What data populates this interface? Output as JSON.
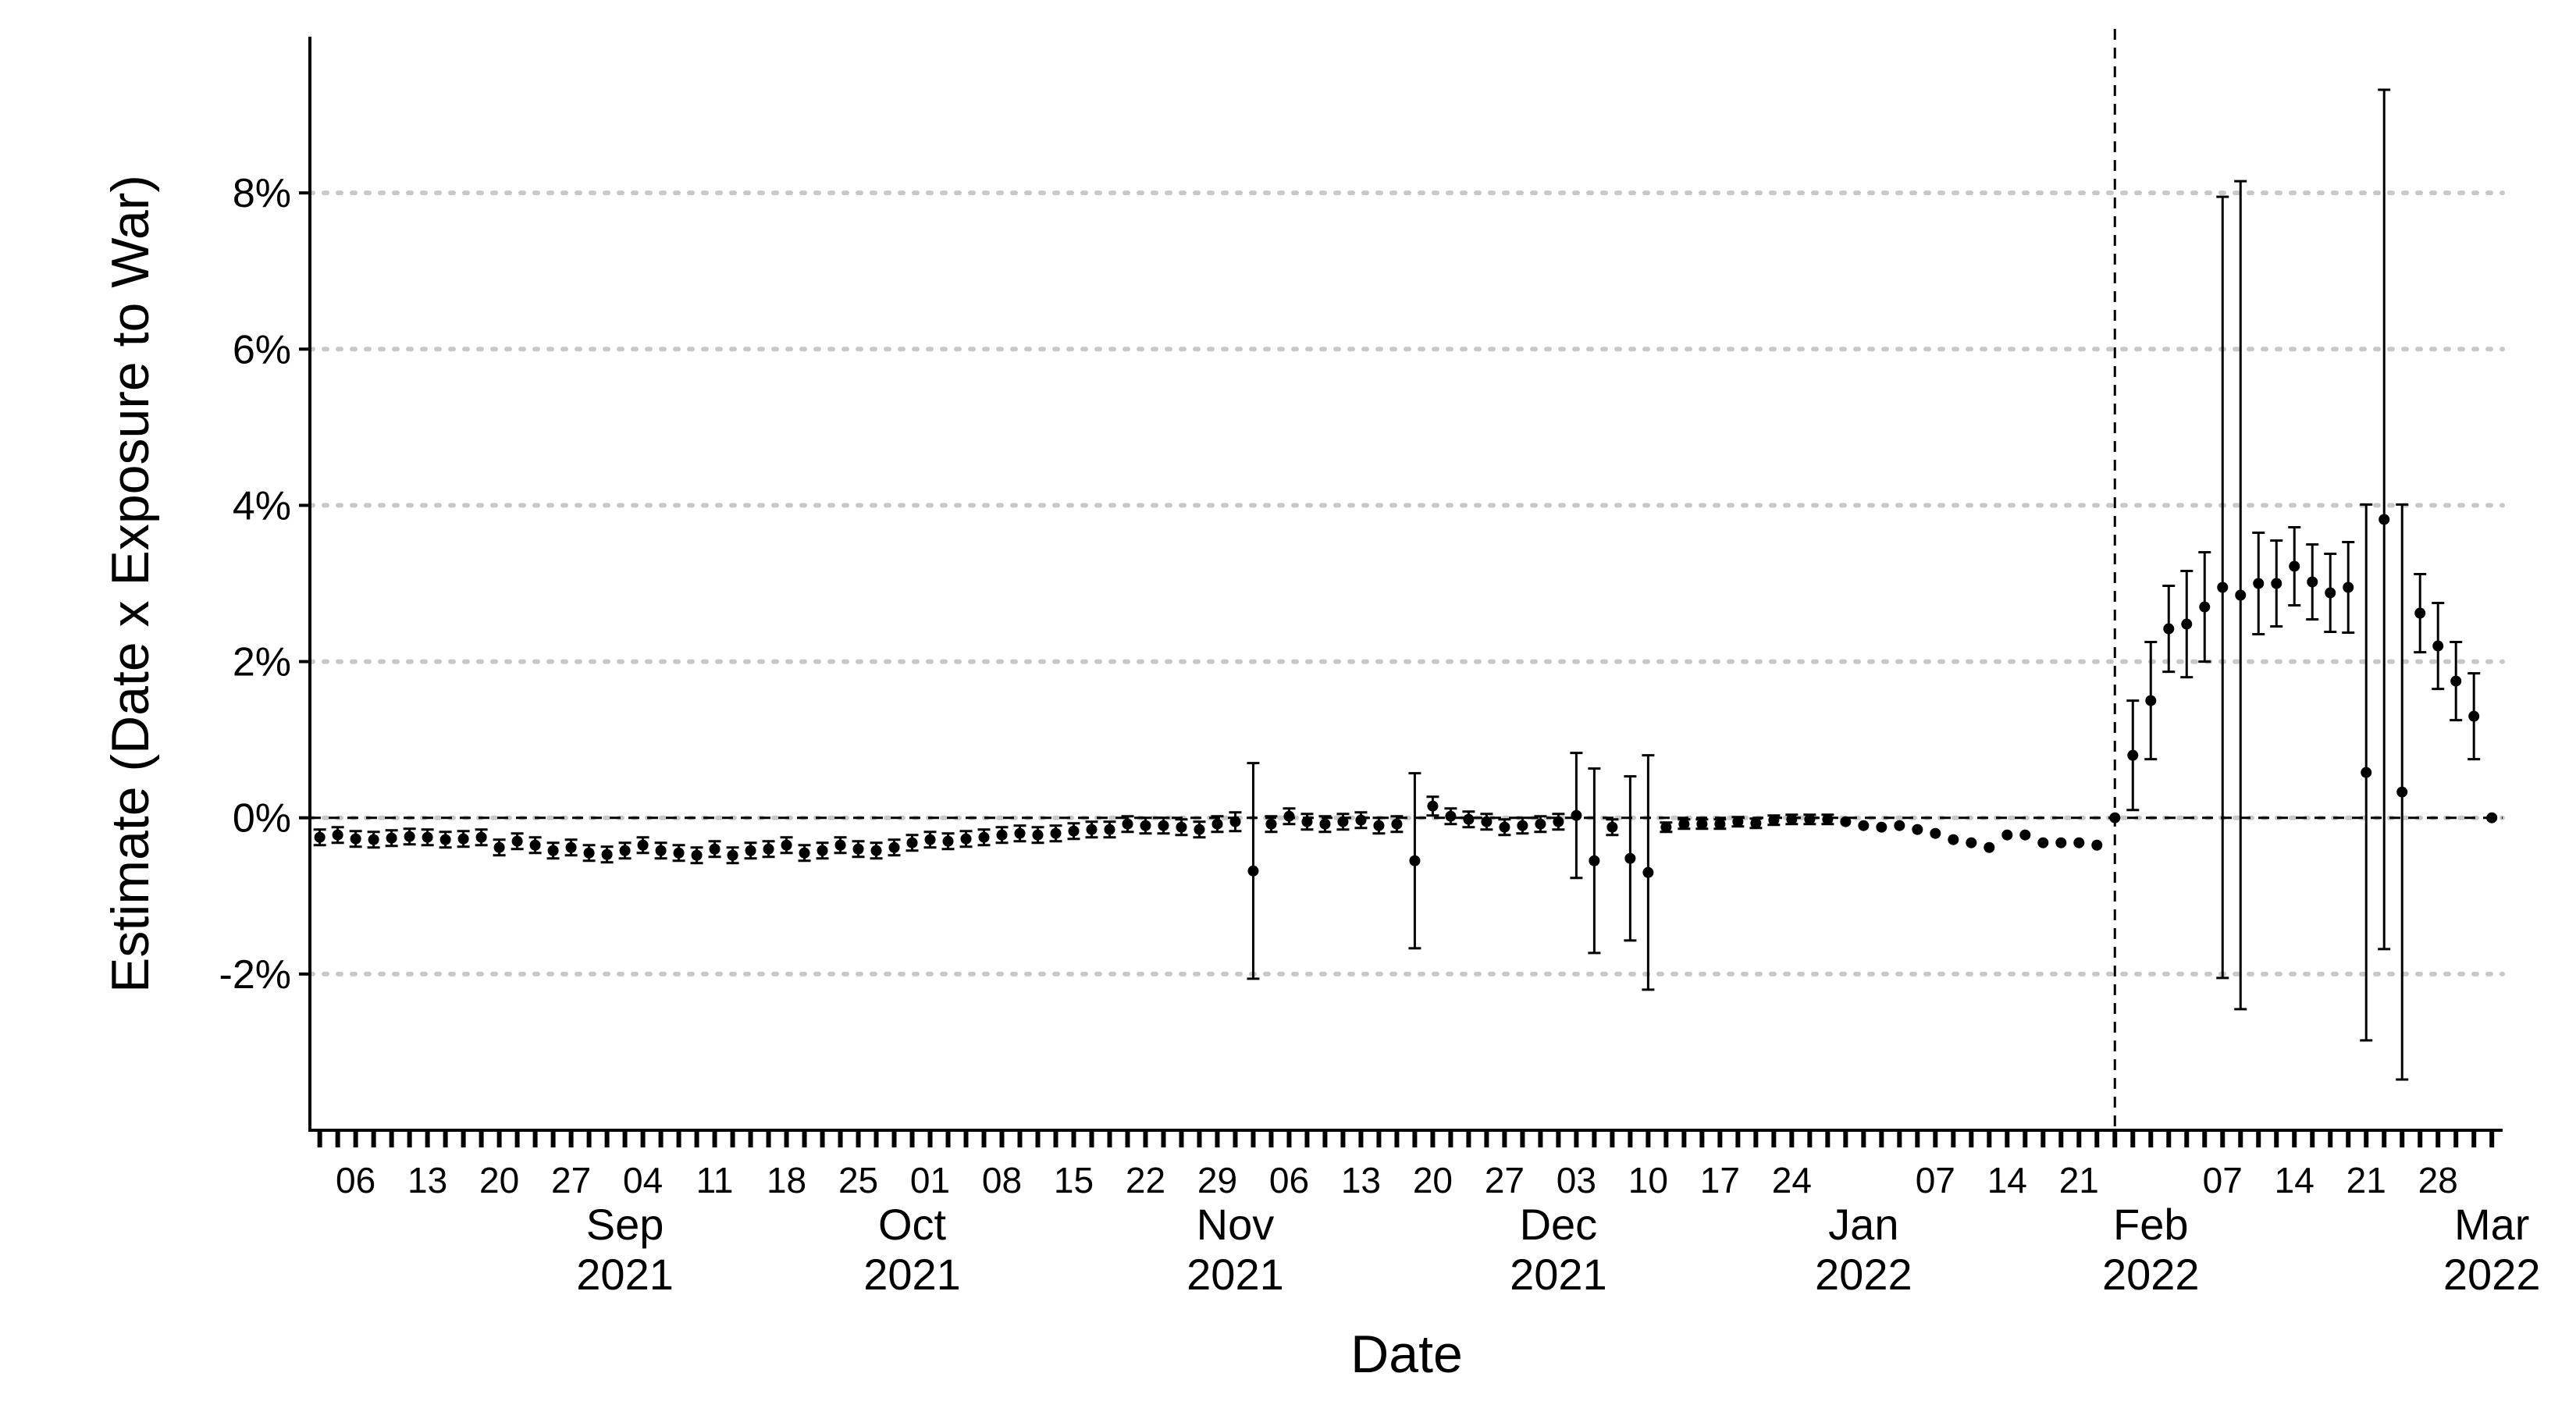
{
  "chart_data": {
    "type": "errorbar",
    "x_label": "Date",
    "y_label": "Estimate (Date x Exposure to War)",
    "categories": [
      null,
      null,
      "06",
      null,
      null,
      null,
      "13",
      null,
      null,
      null,
      "20",
      null,
      null,
      null,
      "27",
      null,
      null,
      null,
      "04",
      null,
      null,
      null,
      "11",
      null,
      null,
      null,
      "18",
      null,
      null,
      null,
      "25",
      null,
      null,
      null,
      "01",
      null,
      null,
      null,
      "08",
      null,
      null,
      null,
      "15",
      null,
      null,
      null,
      "22",
      null,
      null,
      null,
      "29",
      null,
      null,
      null,
      "06",
      null,
      null,
      null,
      "13",
      null,
      null,
      null,
      "20",
      null,
      null,
      null,
      "27",
      null,
      null,
      null,
      "03",
      null,
      null,
      null,
      "10",
      null,
      null,
      null,
      "17",
      null,
      null,
      null,
      "24",
      null,
      null,
      null,
      null,
      null,
      null,
      null,
      "07",
      null,
      null,
      null,
      "14",
      null,
      null,
      null,
      "21",
      null,
      null,
      null,
      null,
      null,
      null,
      null,
      "07",
      null,
      null,
      null,
      "14",
      null,
      null,
      null,
      "21",
      null,
      null,
      null,
      "28",
      null,
      null,
      null
    ],
    "month_labels": [
      null,
      null,
      null,
      null,
      null,
      null,
      null,
      null,
      null,
      null,
      null,
      null,
      null,
      null,
      null,
      null,
      null,
      "Sep",
      null,
      null,
      null,
      null,
      null,
      null,
      null,
      null,
      null,
      null,
      null,
      null,
      null,
      null,
      null,
      "Oct",
      null,
      null,
      null,
      null,
      null,
      null,
      null,
      null,
      null,
      null,
      null,
      null,
      null,
      null,
      null,
      null,
      null,
      "Nov",
      null,
      null,
      null,
      null,
      null,
      null,
      null,
      null,
      null,
      null,
      null,
      null,
      null,
      null,
      null,
      null,
      null,
      "Dec",
      null,
      null,
      null,
      null,
      null,
      null,
      null,
      null,
      null,
      null,
      null,
      null,
      null,
      null,
      null,
      null,
      "Jan",
      null,
      null,
      null,
      null,
      null,
      null,
      null,
      null,
      null,
      null,
      null,
      null,
      null,
      null,
      null,
      "Feb",
      null,
      null,
      null,
      null,
      null,
      null,
      null,
      null,
      null,
      null,
      null,
      null,
      null,
      null,
      null,
      null,
      null,
      null,
      "Mar"
    ],
    "year_labels": [
      null,
      null,
      null,
      null,
      null,
      null,
      null,
      null,
      null,
      null,
      null,
      null,
      null,
      null,
      null,
      null,
      null,
      "2021",
      null,
      null,
      null,
      null,
      null,
      null,
      null,
      null,
      null,
      null,
      null,
      null,
      null,
      null,
      null,
      "2021",
      null,
      null,
      null,
      null,
      null,
      null,
      null,
      null,
      null,
      null,
      null,
      null,
      null,
      null,
      null,
      null,
      null,
      "2021",
      null,
      null,
      null,
      null,
      null,
      null,
      null,
      null,
      null,
      null,
      null,
      null,
      null,
      null,
      null,
      null,
      null,
      "2021",
      null,
      null,
      null,
      null,
      null,
      null,
      null,
      null,
      null,
      null,
      null,
      null,
      null,
      null,
      null,
      null,
      "2022",
      null,
      null,
      null,
      null,
      null,
      null,
      null,
      null,
      null,
      null,
      null,
      null,
      null,
      null,
      null,
      "2022",
      null,
      null,
      null,
      null,
      null,
      null,
      null,
      null,
      null,
      null,
      null,
      null,
      null,
      null,
      null,
      null,
      null,
      null,
      "2022"
    ],
    "values": [
      -0.25,
      -0.22,
      -0.27,
      -0.28,
      -0.26,
      -0.24,
      -0.25,
      -0.28,
      -0.27,
      -0.25,
      -0.38,
      -0.3,
      -0.35,
      -0.42,
      -0.38,
      -0.45,
      -0.47,
      -0.42,
      -0.35,
      -0.42,
      -0.45,
      -0.48,
      -0.4,
      -0.48,
      -0.42,
      -0.4,
      -0.35,
      -0.45,
      -0.42,
      -0.35,
      -0.4,
      -0.42,
      -0.38,
      -0.32,
      -0.28,
      -0.3,
      -0.27,
      -0.25,
      -0.22,
      -0.2,
      -0.22,
      -0.2,
      -0.17,
      -0.15,
      -0.15,
      -0.08,
      -0.1,
      -0.1,
      -0.12,
      -0.15,
      -0.08,
      -0.05,
      -0.68,
      -0.08,
      0.02,
      -0.05,
      -0.08,
      -0.05,
      -0.03,
      -0.1,
      -0.08,
      -0.55,
      0.15,
      0.02,
      -0.02,
      -0.05,
      -0.12,
      -0.1,
      -0.08,
      -0.05,
      0.03,
      -0.55,
      -0.12,
      -0.52,
      -0.7,
      -0.12,
      -0.08,
      -0.08,
      -0.08,
      -0.05,
      -0.07,
      -0.03,
      -0.02,
      -0.02,
      -0.02,
      -0.05,
      -0.1,
      -0.12,
      -0.1,
      -0.15,
      -0.2,
      -0.28,
      -0.32,
      -0.38,
      -0.22,
      -0.22,
      -0.32,
      -0.32,
      -0.32,
      -0.35,
      0,
      0.8,
      1.5,
      2.42,
      2.48,
      2.7,
      2.95,
      2.85,
      3.0,
      3.0,
      3.22,
      3.02,
      2.88,
      2.95,
      0.58,
      3.82,
      0.33,
      2.62,
      2.2,
      1.75,
      1.3,
      0
    ],
    "errors": [
      0.1,
      0.1,
      0.1,
      0.1,
      0.1,
      0.1,
      0.1,
      0.1,
      0.1,
      0.1,
      0.1,
      0.1,
      0.1,
      0.1,
      0.1,
      0.1,
      0.1,
      0.1,
      0.1,
      0.1,
      0.1,
      0.1,
      0.1,
      0.1,
      0.1,
      0.1,
      0.1,
      0.1,
      0.1,
      0.1,
      0.1,
      0.1,
      0.1,
      0.1,
      0.1,
      0.1,
      0.1,
      0.1,
      0.1,
      0.1,
      0.1,
      0.1,
      0.1,
      0.1,
      0.1,
      0.1,
      0.1,
      0.1,
      0.1,
      0.1,
      0.1,
      0.12,
      1.38,
      0.1,
      0.1,
      0.1,
      0.1,
      0.1,
      0.1,
      0.1,
      0.1,
      1.12,
      0.12,
      0.1,
      0.1,
      0.1,
      0.1,
      0.1,
      0.1,
      0.1,
      0.8,
      1.18,
      0.1,
      1.05,
      1.5,
      0.06,
      0.06,
      0.06,
      0.06,
      0.06,
      0.06,
      0.06,
      0.06,
      0.06,
      0.06,
      0,
      0,
      0,
      0,
      0,
      0,
      0,
      0,
      0,
      0,
      0,
      0,
      0,
      0,
      0,
      0,
      0.7,
      0.75,
      0.55,
      0.68,
      0.7,
      5.0,
      5.3,
      0.65,
      0.55,
      0.5,
      0.48,
      0.5,
      0.58,
      3.43,
      5.5,
      3.68,
      0.5,
      0.55,
      0.5,
      0.55,
      0
    ],
    "color": "#000000",
    "ylim": [
      -4,
      10
    ],
    "yticks": [
      {
        "value": -2,
        "label": "-2%"
      },
      {
        "value": 0,
        "label": "0%"
      },
      {
        "value": 2,
        "label": "2%"
      },
      {
        "value": 4,
        "label": "4%"
      },
      {
        "value": 6,
        "label": "6%"
      },
      {
        "value": 8,
        "label": "8%"
      }
    ],
    "grid": true,
    "hline": 0,
    "vline_index": 100
  }
}
